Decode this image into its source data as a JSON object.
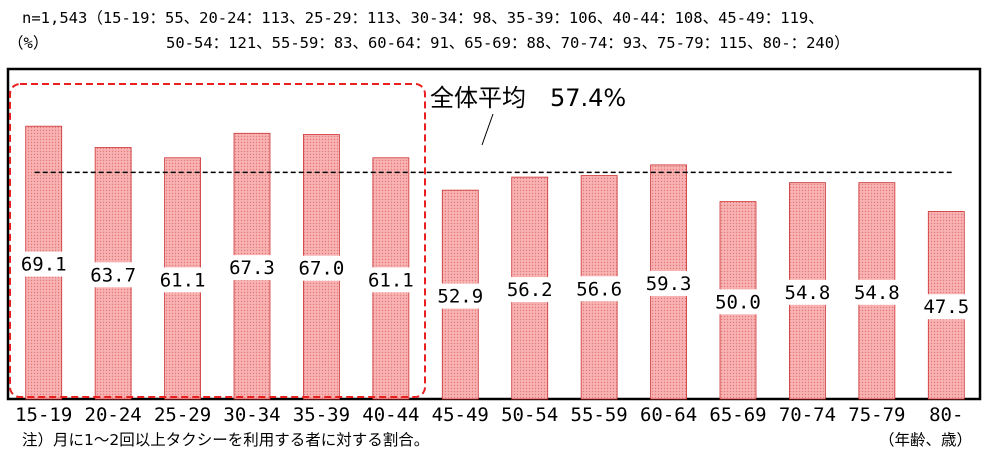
{
  "header": {
    "sample_line_1": "n=1,543（15-19：55、20-24：113、25-29：113、30-34：98、35-39：106、40-44：108、45-49：119、",
    "unit_prefix": "（%）",
    "sample_line_2": "50-54：121、55-59：83、60-64：91、65-69：88、70-74：93、75-79：115、80-：240）"
  },
  "chart_data": {
    "type": "bar",
    "categories": [
      "15-19",
      "20-24",
      "25-29",
      "30-34",
      "35-39",
      "40-44",
      "45-49",
      "50-54",
      "55-59",
      "60-64",
      "65-69",
      "70-74",
      "75-79",
      "80-"
    ],
    "values": [
      69.1,
      63.7,
      61.1,
      67.3,
      67.0,
      61.1,
      52.9,
      56.2,
      56.6,
      59.3,
      50.0,
      54.8,
      54.8,
      47.5
    ],
    "value_labels": [
      "69.1",
      "63.7",
      "61.1",
      "67.3",
      "67.0",
      "61.1",
      "52.9",
      "56.2",
      "56.6",
      "59.3",
      "50.0",
      "54.8",
      "54.8",
      "47.5"
    ],
    "ylim": [
      0,
      77
    ],
    "bar_color": "#f7a5a5",
    "bar_edge_color": "#cc3333",
    "highlight_color": "#e82020",
    "highlight_range": [
      "15-19",
      "40-44"
    ],
    "average": {
      "label": "全体平均　57.4%",
      "value": 57.4
    },
    "xlabel": "（年齢、歳）"
  },
  "footnote": "注）月に1～2回以上タクシーを利用する者に対する割合。"
}
